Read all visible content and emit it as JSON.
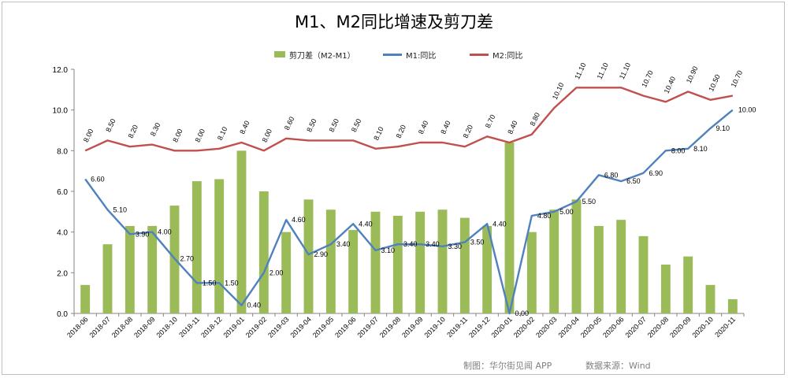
{
  "chart_data": {
    "type": "bar",
    "title": "M1、M2同比增速及剪刀差",
    "categories": [
      "2018-06",
      "2018-07",
      "2018-08",
      "2018-09",
      "2018-10",
      "2018-11",
      "2018-12",
      "2019-01",
      "2019-02",
      "2019-03",
      "2019-04",
      "2019-05",
      "2019-06",
      "2019-07",
      "2019-08",
      "2019-09",
      "2019-10",
      "2019-11",
      "2019-12",
      "2020-01",
      "2020-02",
      "2020-03",
      "2020-04",
      "2020-05",
      "2020-06",
      "2020-07",
      "2020-08",
      "2020-09",
      "2020-10",
      "2020-11"
    ],
    "series": [
      {
        "name": "剪刀差（M2-M1）",
        "type": "bar",
        "color": "#9bbb59",
        "values": [
          1.4,
          3.4,
          4.3,
          4.3,
          5.3,
          6.5,
          6.6,
          8.0,
          6.0,
          4.0,
          5.6,
          5.1,
          4.1,
          5.0,
          4.8,
          5.0,
          5.1,
          4.7,
          4.3,
          8.4,
          4.0,
          5.1,
          5.6,
          4.3,
          4.6,
          3.8,
          2.4,
          2.8,
          1.4,
          0.7
        ]
      },
      {
        "name": "M1:同比",
        "type": "line",
        "color": "#4f81bd",
        "values": [
          6.6,
          5.1,
          3.9,
          4.0,
          2.7,
          1.5,
          1.5,
          0.4,
          2.0,
          4.6,
          2.9,
          3.4,
          4.4,
          3.1,
          3.4,
          3.4,
          3.3,
          3.5,
          4.4,
          0.0,
          4.8,
          5.0,
          5.5,
          6.8,
          6.5,
          6.9,
          8.0,
          8.1,
          9.1,
          10.0
        ],
        "labels": [
          "6.60",
          "5.10",
          "3.90",
          "4.00",
          "2.70",
          "1.50",
          "1.50",
          "0.40",
          "2.00",
          "4.60",
          "2.90",
          "3.40",
          "4.40",
          "3.10",
          "3.40",
          "3.40",
          "3.30",
          "3.50",
          "4.40",
          "0.00",
          "4.80",
          "5.00",
          "5.50",
          "6.80",
          "6.50",
          "6.90",
          "8.00",
          "8.10",
          "9.10",
          "10.00"
        ]
      },
      {
        "name": "M2:同比",
        "type": "line",
        "color": "#c0504d",
        "values": [
          8.0,
          8.5,
          8.2,
          8.3,
          8.0,
          8.0,
          8.1,
          8.4,
          8.0,
          8.6,
          8.5,
          8.5,
          8.5,
          8.1,
          8.2,
          8.4,
          8.4,
          8.2,
          8.7,
          8.4,
          8.8,
          10.1,
          11.1,
          11.1,
          11.1,
          10.7,
          10.4,
          10.9,
          10.5,
          10.7
        ],
        "labels": [
          "8.00",
          "8.50",
          "8.20",
          "8.30",
          "8.00",
          "8.00",
          "8.10",
          "8.40",
          "8.00",
          "8.60",
          "8.50",
          "8.50",
          "8.50",
          "8.10",
          "8.20",
          "8.40",
          "8.40",
          "8.20",
          "8.70",
          "8.40",
          "8.80",
          "10.10",
          "11.10",
          "11.10",
          "11.10",
          "10.70",
          "10.40",
          "10.90",
          "10.50",
          "10.70"
        ]
      }
    ],
    "yticks": [
      "0.0",
      "2.0",
      "4.0",
      "6.0",
      "8.0",
      "10.0",
      "12.0"
    ],
    "ylim": [
      0,
      12
    ],
    "grid": false,
    "legend_position": "top-center"
  },
  "footer": {
    "maker": "制图：华尔街见闻 APP",
    "source": "数据来源：Wind"
  }
}
